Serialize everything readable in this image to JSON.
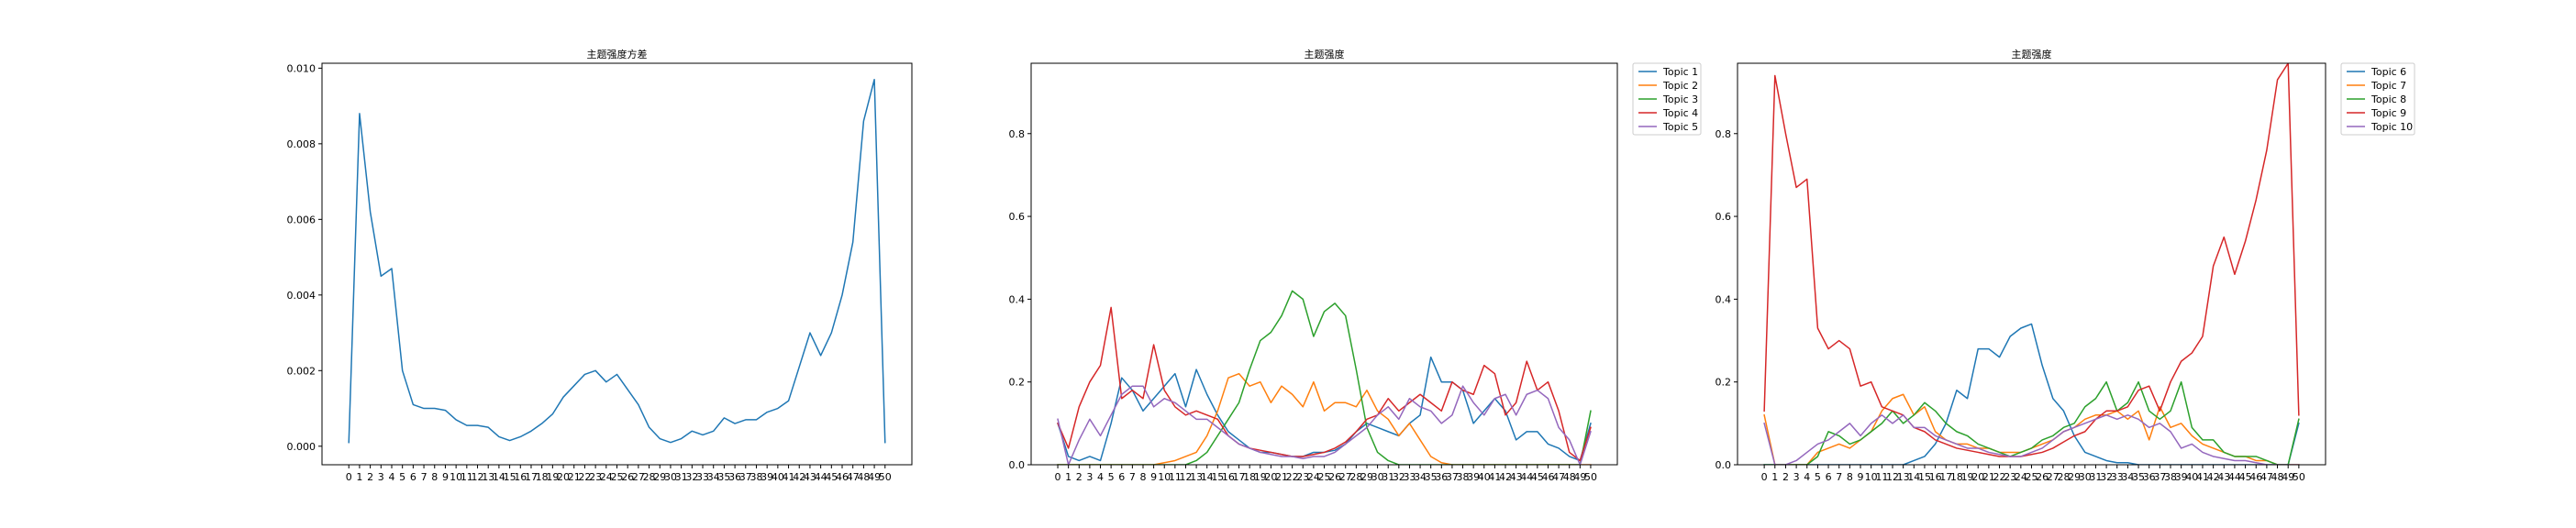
{
  "chart_data": [
    {
      "type": "line",
      "title": "主题强度方差",
      "xlabel": "",
      "ylabel": "",
      "x": [
        0,
        1,
        2,
        3,
        4,
        5,
        6,
        7,
        8,
        9,
        10,
        11,
        12,
        13,
        14,
        15,
        16,
        17,
        18,
        19,
        20,
        21,
        22,
        23,
        24,
        25,
        26,
        27,
        28,
        29,
        30,
        31,
        32,
        33,
        34,
        35,
        36,
        37,
        38,
        39,
        40,
        41,
        42,
        43,
        44,
        45,
        46,
        47,
        48,
        49,
        50
      ],
      "ylim": [
        -0.00049,
        0.01013
      ],
      "yticks": [
        0.0,
        0.002,
        0.004,
        0.006,
        0.008,
        0.01
      ],
      "ytick_labels": [
        "0.000",
        "0.002",
        "0.004",
        "0.006",
        "0.008",
        "0.010"
      ],
      "legend": "none",
      "grid": false,
      "series": [
        {
          "color": "#1f77b4",
          "values": [
            0.0001,
            0.0088,
            0.0062,
            0.0045,
            0.0047,
            0.002,
            0.0011,
            0.001,
            0.001,
            0.00095,
            0.0007,
            0.00055,
            0.00055,
            0.0005,
            0.00025,
            0.00015,
            0.00025,
            0.0004,
            0.0006,
            0.00085,
            0.0013,
            0.0016,
            0.0019,
            0.002,
            0.0017,
            0.0019,
            0.0015,
            0.0011,
            0.0005,
            0.0002,
            0.0001,
            0.0002,
            0.0004,
            0.0003,
            0.0004,
            0.00075,
            0.0006,
            0.0007,
            0.0007,
            0.0009,
            0.001,
            0.0012,
            0.0021,
            0.003,
            0.0024,
            0.003,
            0.004,
            0.0054,
            0.0086,
            0.0097,
            0.0001
          ]
        }
      ]
    },
    {
      "type": "line",
      "title": "主题强度",
      "xlabel": "",
      "ylabel": "",
      "x": [
        0,
        1,
        2,
        3,
        4,
        5,
        6,
        7,
        8,
        9,
        10,
        11,
        12,
        13,
        14,
        15,
        16,
        17,
        18,
        19,
        20,
        21,
        22,
        23,
        24,
        25,
        26,
        27,
        28,
        29,
        30,
        31,
        32,
        33,
        34,
        35,
        36,
        37,
        38,
        39,
        40,
        41,
        42,
        43,
        44,
        45,
        46,
        47,
        48,
        49,
        50
      ],
      "ylim": [
        0,
        0.97
      ],
      "yticks": [
        0.0,
        0.2,
        0.4,
        0.6,
        0.8
      ],
      "ytick_labels": [
        "0.0",
        "0.2",
        "0.4",
        "0.6",
        "0.8"
      ],
      "legend": "outside-top-right",
      "grid": false,
      "series": [
        {
          "name": "Topic 1",
          "color": "#1f77b4",
          "values": [
            0.1,
            0.02,
            0.01,
            0.02,
            0.01,
            0.1,
            0.21,
            0.18,
            0.13,
            0.16,
            0.19,
            0.22,
            0.14,
            0.23,
            0.17,
            0.12,
            0.08,
            0.06,
            0.04,
            0.03,
            0.03,
            0.025,
            0.02,
            0.02,
            0.03,
            0.03,
            0.035,
            0.05,
            0.08,
            0.1,
            0.09,
            0.08,
            0.07,
            0.1,
            0.12,
            0.26,
            0.2,
            0.2,
            0.18,
            0.1,
            0.13,
            0.16,
            0.13,
            0.06,
            0.08,
            0.08,
            0.05,
            0.04,
            0.02,
            0.01,
            0.1
          ]
        },
        {
          "name": "Topic 2",
          "color": "#ff7f0e",
          "values": [
            0.0,
            0.0,
            0.0,
            0.0,
            0.0,
            0.0,
            0.0,
            0.0,
            0.0,
            0.0,
            0.005,
            0.01,
            0.02,
            0.03,
            0.07,
            0.13,
            0.21,
            0.22,
            0.19,
            0.2,
            0.15,
            0.19,
            0.17,
            0.14,
            0.2,
            0.13,
            0.15,
            0.15,
            0.14,
            0.18,
            0.13,
            0.11,
            0.07,
            0.1,
            0.06,
            0.02,
            0.005,
            0.0,
            0.0,
            0.0,
            0.0,
            0.0,
            0.0,
            0.0,
            0.0,
            0.0,
            0.0,
            0.0,
            0.0,
            0.0,
            0.0
          ]
        },
        {
          "name": "Topic 3",
          "color": "#2ca02c",
          "values": [
            0.0,
            0.0,
            0.0,
            0.0,
            0.0,
            0.0,
            0.0,
            0.0,
            0.0,
            0.0,
            0.0,
            0.0,
            0.0,
            0.01,
            0.03,
            0.07,
            0.11,
            0.15,
            0.23,
            0.3,
            0.32,
            0.36,
            0.42,
            0.4,
            0.31,
            0.37,
            0.39,
            0.36,
            0.23,
            0.09,
            0.03,
            0.01,
            0.0,
            0.0,
            0.0,
            0.0,
            0.0,
            0.0,
            0.0,
            0.0,
            0.0,
            0.0,
            0.0,
            0.0,
            0.0,
            0.0,
            0.0,
            0.0,
            0.0,
            0.0,
            0.13
          ]
        },
        {
          "name": "Topic 4",
          "color": "#d62728",
          "values": [
            0.1,
            0.04,
            0.14,
            0.2,
            0.24,
            0.38,
            0.16,
            0.18,
            0.16,
            0.29,
            0.18,
            0.14,
            0.12,
            0.13,
            0.12,
            0.11,
            0.07,
            0.05,
            0.04,
            0.035,
            0.03,
            0.025,
            0.02,
            0.02,
            0.025,
            0.03,
            0.04,
            0.055,
            0.08,
            0.11,
            0.12,
            0.16,
            0.13,
            0.15,
            0.17,
            0.15,
            0.13,
            0.2,
            0.18,
            0.17,
            0.24,
            0.22,
            0.12,
            0.15,
            0.25,
            0.18,
            0.2,
            0.13,
            0.03,
            0.01,
            0.09
          ]
        },
        {
          "name": "Topic 5",
          "color": "#9467bd",
          "values": [
            0.11,
            0.0,
            0.06,
            0.11,
            0.07,
            0.12,
            0.17,
            0.19,
            0.19,
            0.14,
            0.16,
            0.15,
            0.13,
            0.11,
            0.11,
            0.09,
            0.07,
            0.05,
            0.04,
            0.03,
            0.025,
            0.02,
            0.02,
            0.015,
            0.02,
            0.02,
            0.03,
            0.05,
            0.07,
            0.09,
            0.12,
            0.14,
            0.11,
            0.16,
            0.14,
            0.13,
            0.1,
            0.12,
            0.19,
            0.15,
            0.12,
            0.16,
            0.17,
            0.12,
            0.17,
            0.18,
            0.16,
            0.09,
            0.06,
            0.0,
            0.08
          ]
        }
      ]
    },
    {
      "type": "line",
      "title": "主题强度",
      "xlabel": "",
      "ylabel": "",
      "x": [
        0,
        1,
        2,
        3,
        4,
        5,
        6,
        7,
        8,
        9,
        10,
        11,
        12,
        13,
        14,
        15,
        16,
        17,
        18,
        19,
        20,
        21,
        22,
        23,
        24,
        25,
        26,
        27,
        28,
        29,
        30,
        31,
        32,
        33,
        34,
        35,
        36,
        37,
        38,
        39,
        40,
        41,
        42,
        43,
        44,
        45,
        46,
        47,
        48,
        49,
        50
      ],
      "ylim": [
        0,
        0.97
      ],
      "yticks": [
        0.0,
        0.2,
        0.4,
        0.6,
        0.8
      ],
      "ytick_labels": [
        "0.0",
        "0.2",
        "0.4",
        "0.6",
        "0.8"
      ],
      "legend": "outside-top-right",
      "grid": false,
      "series": [
        {
          "name": "Topic 6",
          "color": "#1f77b4",
          "values": [
            0.0,
            0.0,
            0.0,
            0.0,
            0.0,
            0.0,
            0.0,
            0.0,
            0.0,
            0.0,
            0.0,
            0.0,
            0.0,
            0.0,
            0.01,
            0.02,
            0.05,
            0.1,
            0.18,
            0.16,
            0.28,
            0.28,
            0.26,
            0.31,
            0.33,
            0.34,
            0.24,
            0.16,
            0.13,
            0.07,
            0.03,
            0.02,
            0.01,
            0.005,
            0.005,
            0.0,
            0.0,
            0.0,
            0.0,
            0.0,
            0.0,
            0.0,
            0.0,
            0.0,
            0.0,
            0.0,
            0.0,
            0.0,
            0.0,
            0.0,
            0.1
          ]
        },
        {
          "name": "Topic 7",
          "color": "#ff7f0e",
          "values": [
            0.12,
            0.0,
            0.0,
            0.0,
            0.0,
            0.03,
            0.04,
            0.05,
            0.04,
            0.06,
            0.08,
            0.13,
            0.16,
            0.17,
            0.12,
            0.14,
            0.08,
            0.06,
            0.05,
            0.05,
            0.04,
            0.04,
            0.03,
            0.03,
            0.03,
            0.04,
            0.05,
            0.06,
            0.08,
            0.09,
            0.11,
            0.12,
            0.12,
            0.13,
            0.11,
            0.13,
            0.06,
            0.14,
            0.09,
            0.1,
            0.07,
            0.05,
            0.04,
            0.03,
            0.02,
            0.02,
            0.01,
            0.01,
            0.0,
            0.0,
            0.0
          ]
        },
        {
          "name": "Topic 8",
          "color": "#2ca02c",
          "values": [
            0.0,
            0.0,
            0.0,
            0.0,
            0.0,
            0.02,
            0.08,
            0.07,
            0.05,
            0.06,
            0.08,
            0.1,
            0.13,
            0.1,
            0.12,
            0.15,
            0.13,
            0.1,
            0.08,
            0.07,
            0.05,
            0.04,
            0.03,
            0.02,
            0.03,
            0.04,
            0.06,
            0.07,
            0.09,
            0.1,
            0.14,
            0.16,
            0.2,
            0.13,
            0.15,
            0.2,
            0.13,
            0.11,
            0.13,
            0.2,
            0.09,
            0.06,
            0.06,
            0.03,
            0.02,
            0.02,
            0.02,
            0.01,
            0.0,
            0.0,
            0.11
          ]
        },
        {
          "name": "Topic 9",
          "color": "#d62728",
          "values": [
            0.13,
            0.94,
            0.8,
            0.67,
            0.69,
            0.33,
            0.28,
            0.3,
            0.28,
            0.19,
            0.2,
            0.14,
            0.13,
            0.12,
            0.09,
            0.08,
            0.06,
            0.05,
            0.04,
            0.035,
            0.03,
            0.025,
            0.02,
            0.02,
            0.02,
            0.025,
            0.03,
            0.04,
            0.055,
            0.07,
            0.08,
            0.11,
            0.13,
            0.13,
            0.14,
            0.18,
            0.19,
            0.13,
            0.2,
            0.25,
            0.27,
            0.31,
            0.48,
            0.55,
            0.46,
            0.54,
            0.64,
            0.76,
            0.93,
            0.97,
            0.12
          ]
        },
        {
          "name": "Topic 10",
          "color": "#9467bd",
          "values": [
            0.1,
            0.0,
            0.0,
            0.01,
            0.03,
            0.05,
            0.06,
            0.08,
            0.1,
            0.07,
            0.1,
            0.12,
            0.1,
            0.12,
            0.09,
            0.09,
            0.07,
            0.06,
            0.05,
            0.04,
            0.04,
            0.03,
            0.025,
            0.02,
            0.02,
            0.03,
            0.04,
            0.06,
            0.08,
            0.09,
            0.1,
            0.11,
            0.12,
            0.11,
            0.12,
            0.11,
            0.09,
            0.1,
            0.08,
            0.04,
            0.05,
            0.03,
            0.02,
            0.015,
            0.01,
            0.01,
            0.005,
            0.0,
            0.0,
            0.0,
            0.0
          ]
        }
      ]
    }
  ]
}
